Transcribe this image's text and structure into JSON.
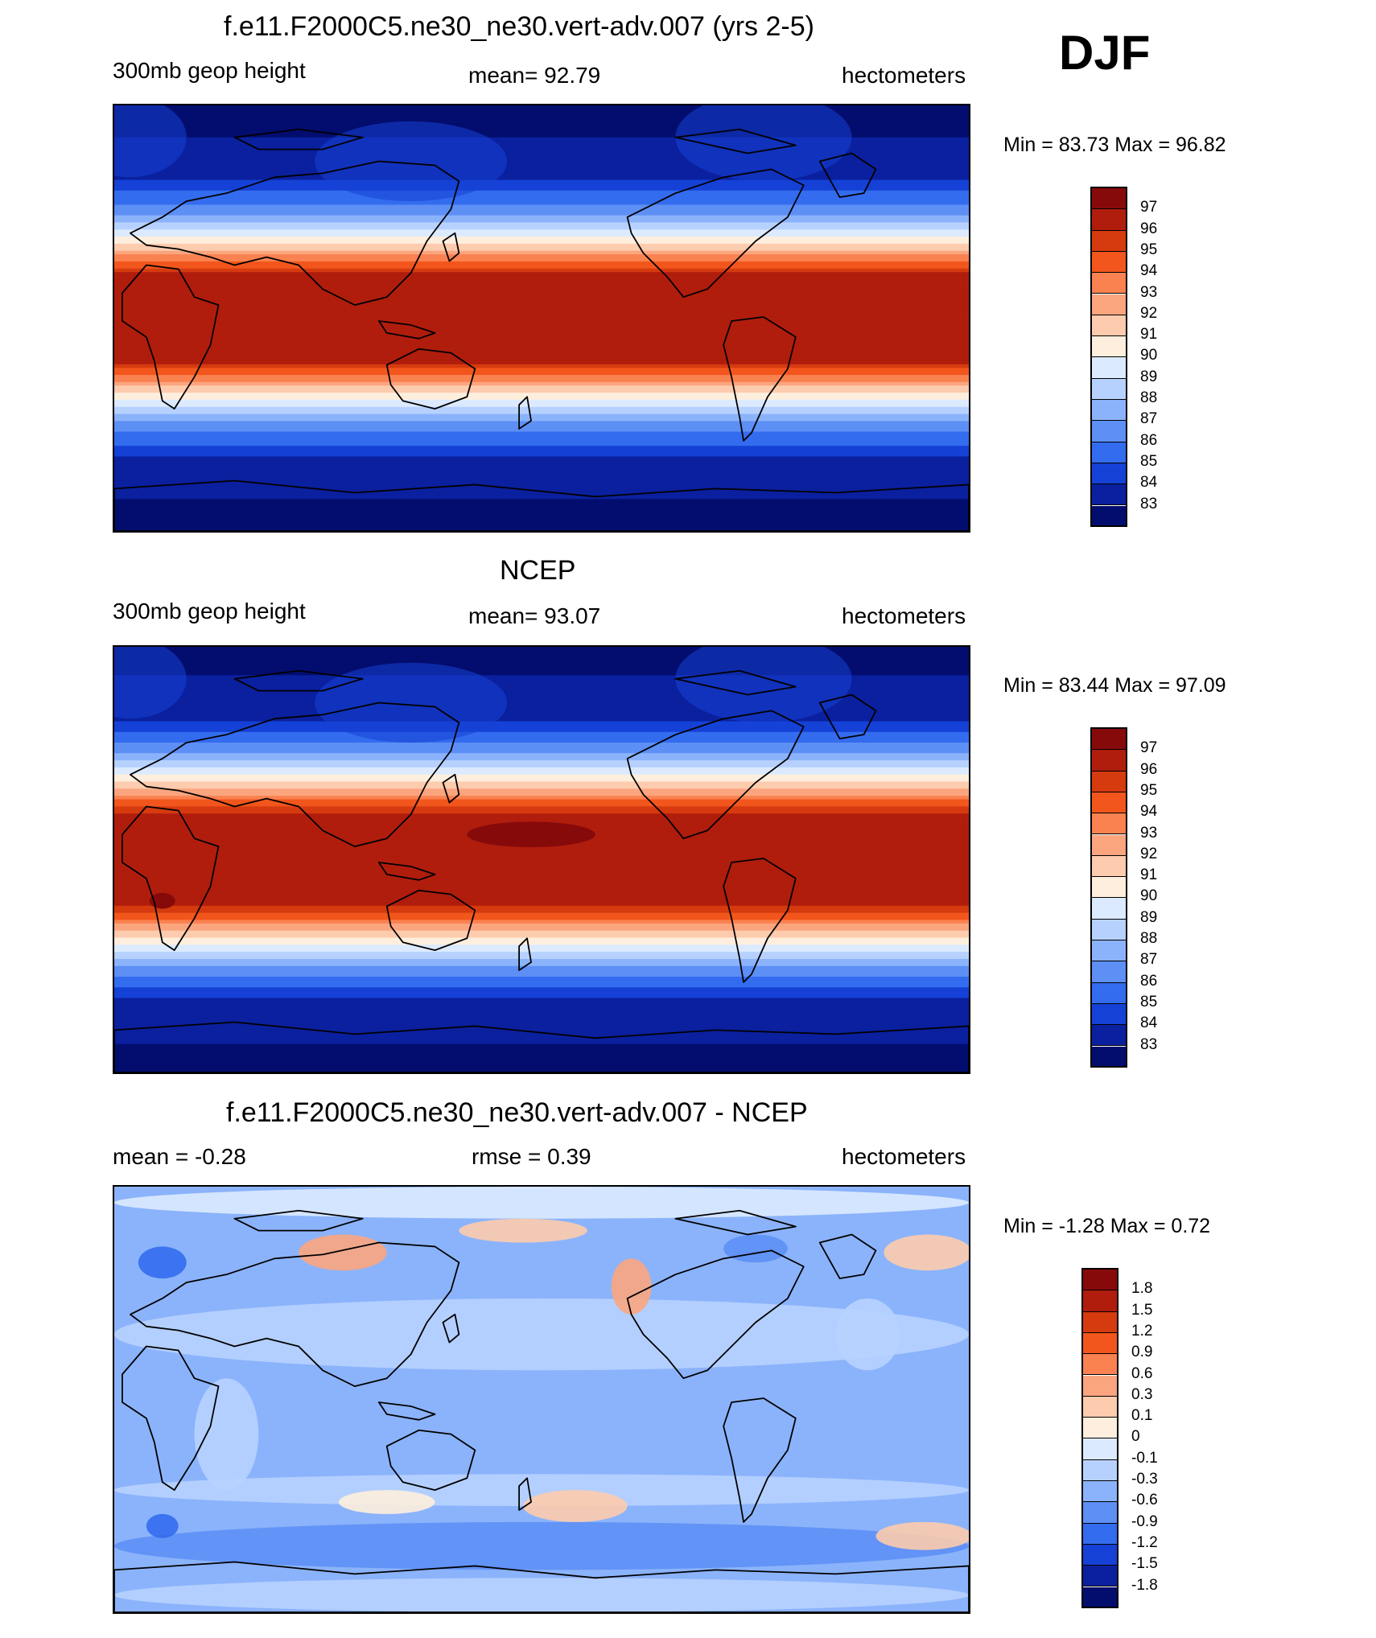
{
  "season": "DJF",
  "panels": [
    {
      "id": "model",
      "title": "f.e11.F2000C5.ne30_ne30.vert-adv.007 (yrs 2-5)",
      "left": "300mb geop height",
      "center": "mean=  92.79",
      "right": "hectometers",
      "minmax": "Min =  83.73 Max =  96.82",
      "field": "height",
      "colorbar": {
        "labels": [
          "97",
          "96",
          "95",
          "94",
          "93",
          "92",
          "91",
          "90",
          "89",
          "88",
          "87",
          "86",
          "85",
          "84",
          "83"
        ],
        "colors": [
          "#870a0b",
          "#b01d0d",
          "#d63a0f",
          "#f2561c",
          "#fa8250",
          "#fba57f",
          "#fdcbad",
          "#fdeedd",
          "#dceaff",
          "#b7d1ff",
          "#8bb3fb",
          "#5d8ff5",
          "#336cee",
          "#1541d6",
          "#0a209e",
          "#030d6e"
        ]
      }
    },
    {
      "id": "obs",
      "title": "NCEP",
      "left": "300mb geop height",
      "center": "mean=  93.07",
      "right": "hectometers",
      "minmax": "Min =  83.44 Max =  97.09",
      "field": "height",
      "colorbar": {
        "labels": [
          "97",
          "96",
          "95",
          "94",
          "93",
          "92",
          "91",
          "90",
          "89",
          "88",
          "87",
          "86",
          "85",
          "84",
          "83"
        ],
        "colors": [
          "#870a0b",
          "#b01d0d",
          "#d63a0f",
          "#f2561c",
          "#fa8250",
          "#fba57f",
          "#fdcbad",
          "#fdeedd",
          "#dceaff",
          "#b7d1ff",
          "#8bb3fb",
          "#5d8ff5",
          "#336cee",
          "#1541d6",
          "#0a209e",
          "#030d6e"
        ]
      }
    },
    {
      "id": "diff",
      "title": "f.e11.F2000C5.ne30_ne30.vert-adv.007 - NCEP",
      "left": "mean =  -0.28",
      "center": "rmse =   0.39",
      "right": "hectometers",
      "minmax": "Min =  -1.28 Max =   0.72",
      "field": "diff",
      "colorbar": {
        "labels": [
          "1.8",
          "1.5",
          "1.2",
          "0.9",
          "0.6",
          "0.3",
          "0.1",
          "0",
          "-0.1",
          "-0.3",
          "-0.6",
          "-0.9",
          "-1.2",
          "-1.5",
          "-1.8"
        ],
        "colors": [
          "#870a0b",
          "#b01d0d",
          "#d63a0f",
          "#f2561c",
          "#fa8250",
          "#fba57f",
          "#fdcbad",
          "#fdeedd",
          "#dceaff",
          "#b7d1ff",
          "#8bb3fb",
          "#5d8ff5",
          "#336cee",
          "#1541d6",
          "#0a209e",
          "#030d6e"
        ]
      }
    }
  ]
}
